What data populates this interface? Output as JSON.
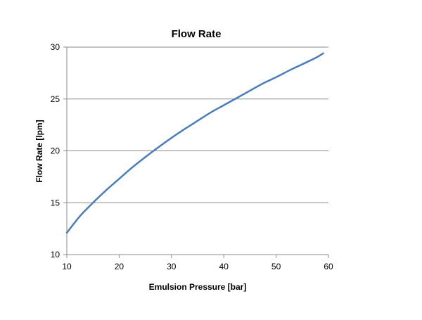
{
  "chart_data": {
    "type": "line",
    "title": "Flow Rate",
    "xlabel": "Emulsion Pressure [bar]",
    "ylabel": "Flow Rate [lpm]",
    "xlim": [
      10,
      60
    ],
    "ylim": [
      10,
      30
    ],
    "x_ticks": [
      "10",
      "20",
      "30",
      "40",
      "50",
      "60"
    ],
    "y_ticks": [
      "10",
      "15",
      "20",
      "25",
      "30"
    ],
    "grid": "horizontal",
    "legend": "none",
    "series": [
      {
        "color": "#4a7ebb",
        "x": [
          10,
          12.5,
          15,
          17.5,
          20,
          22.5,
          25,
          27.5,
          30,
          32.5,
          35,
          37.5,
          40,
          42.5,
          45,
          47.5,
          50,
          52.5,
          55,
          57.5,
          59
        ],
        "y": [
          12.1,
          13.7,
          15.0,
          16.2,
          17.3,
          18.4,
          19.4,
          20.35,
          21.25,
          22.1,
          22.9,
          23.7,
          24.4,
          25.1,
          25.8,
          26.5,
          27.1,
          27.75,
          28.35,
          28.95,
          29.4
        ]
      }
    ]
  }
}
